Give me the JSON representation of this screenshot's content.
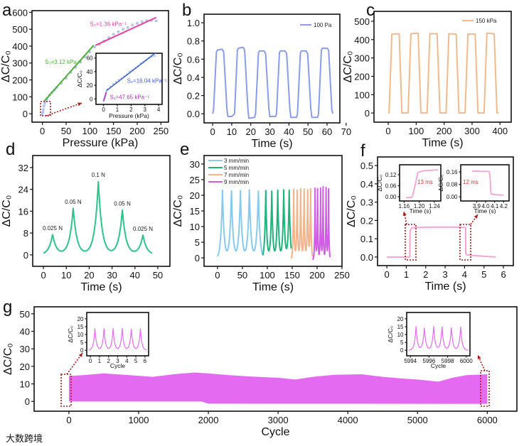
{
  "watermark": "大数跨境",
  "chart_data": [
    {
      "id": "a",
      "letter": "a",
      "type": "scatter",
      "xlabel": "Pressure (kPa)",
      "ylabel": "ΔC/C₀",
      "xlim": [
        -22,
        266
      ],
      "ylim": [
        -50,
        610
      ],
      "xticks": [
        "0",
        "50",
        "100",
        "150",
        "200",
        "250"
      ],
      "yticks": [
        "0",
        "100",
        "200",
        "300",
        "400",
        "500",
        "600"
      ],
      "points": {
        "color": "#b4c6ea",
        "x": [
          0,
          1,
          2,
          3,
          5,
          8,
          10,
          15,
          20,
          25,
          30,
          40,
          50,
          60,
          70,
          80,
          90,
          100,
          110,
          120,
          130,
          140,
          150,
          160,
          170,
          180,
          190,
          200,
          210,
          220,
          230,
          240
        ],
        "y": [
          0,
          10,
          25,
          45,
          62,
          78,
          90,
          110,
          125,
          140,
          155,
          180,
          210,
          245,
          275,
          305,
          335,
          365,
          395,
          410,
          430,
          450,
          470,
          485,
          500,
          510,
          525,
          535,
          545,
          550,
          552,
          550
        ]
      },
      "series": [
        {
          "name": "S3",
          "color": "#4caf3a",
          "x": [
            4,
            108
          ],
          "y": [
            75,
            405
          ]
        },
        {
          "name": "S4",
          "color": "#ea3f9c",
          "x": [
            112,
            240
          ],
          "y": [
            405,
            570
          ]
        }
      ],
      "annotations": [
        {
          "text": "S₃=3.12 kPa⁻¹",
          "x": 5,
          "y": 295,
          "color": "#4caf3a"
        },
        {
          "text": "S₄=1.36 kPa⁻¹",
          "x": 100,
          "y": 520,
          "color": "#ea3f9c"
        }
      ],
      "inset": {
        "ylabel": "ΔC/C₀",
        "xlabel": "Pressure (kPa)",
        "xlim": [
          -0.55,
          4.25
        ],
        "ylim": [
          -8,
          67
        ],
        "xticks": [
          "0",
          "1",
          "2",
          "3",
          "4"
        ],
        "yticks": [
          "0",
          "20",
          "40",
          "60"
        ],
        "points": {
          "color": "#b4c6ea",
          "x": [
            0,
            0.05,
            0.1,
            0.15,
            0.2,
            0.3,
            0.5,
            0.7,
            0.9,
            1.1,
            1.3,
            1.5,
            1.7,
            1.9,
            2.1,
            2.3,
            2.5,
            2.7,
            2.9,
            3.1,
            3.3,
            3.5,
            3.7
          ],
          "y": [
            -3,
            0,
            3,
            7,
            10,
            14,
            18,
            22,
            25,
            28,
            30,
            33,
            36,
            40,
            42,
            45,
            48,
            52,
            54,
            57,
            60,
            62,
            63
          ]
        },
        "series": [
          {
            "name": "S1",
            "color": "#b52fc2",
            "x": [
              0,
              0.2
            ],
            "y": [
              -3,
              10
            ]
          },
          {
            "name": "S2",
            "color": "#3a5fd0",
            "x": [
              0.2,
              3.8
            ],
            "y": [
              12,
              68
            ]
          }
        ],
        "annotations": [
          {
            "text": "S₂=16.04 kPa⁻¹",
            "x": 1.7,
            "y": 24,
            "color": "#3a5fd0"
          },
          {
            "text": "S₁=47.65 kPa⁻¹",
            "x": 0.45,
            "y": 0,
            "color": "#b52fc2"
          }
        ]
      }
    },
    {
      "id": "b",
      "letter": "b",
      "type": "line",
      "xlabel": "Time (s)",
      "ylabel": "ΔC/C₀",
      "xlim": [
        -4.5,
        66.7
      ],
      "ylim": [
        -0.1,
        1.094
      ],
      "xticks": [
        "0",
        "10",
        "20",
        "30",
        "40",
        "50",
        "60",
        "70"
      ],
      "yticks": [
        "0.0",
        "0.2",
        "0.4",
        "0.6",
        "0.8",
        "1.0"
      ],
      "legend": [
        {
          "name": "100 Pa",
          "color": "#8a9cec"
        }
      ],
      "series": [
        {
          "name": "100 Pa",
          "color": "#8a9cec",
          "x": [
            0,
            0.5,
            2,
            2.5,
            5,
            5.8,
            7.5,
            8,
            10,
            11.5,
            13,
            13.5,
            16,
            16.8,
            18.5,
            19,
            22,
            22.5,
            24,
            24.5,
            27,
            27.8,
            29.5,
            30,
            33,
            33.5,
            35,
            35.5,
            38,
            38.8,
            40.5,
            41,
            44,
            44.5,
            46,
            46.5,
            49,
            49.8,
            51.5,
            52,
            55,
            55.5,
            57,
            57.5,
            60,
            60.8,
            62.5,
            63
          ],
          "y": [
            0,
            0.05,
            0.68,
            0.7,
            0.71,
            0.68,
            0.05,
            -0.03,
            -0.03,
            0,
            0.7,
            0.72,
            0.73,
            0.7,
            0.05,
            -0.05,
            -0.04,
            0,
            0.67,
            0.69,
            0.69,
            0.66,
            0.05,
            -0.03,
            -0.03,
            0,
            0.67,
            0.69,
            0.69,
            0.66,
            0.05,
            -0.04,
            -0.04,
            0,
            0.67,
            0.69,
            0.69,
            0.66,
            0.05,
            -0.04,
            -0.04,
            0,
            0.7,
            0.72,
            0.72,
            0.7,
            0.05,
            0
          ]
        }
      ]
    },
    {
      "id": "c",
      "letter": "c",
      "type": "line",
      "xlabel": "Time (s)",
      "ylabel": "ΔC/C₀",
      "xlim": [
        -51,
        440
      ],
      "ylim": [
        -50,
        554
      ],
      "xticks": [
        "0",
        "100",
        "200",
        "300",
        "400"
      ],
      "yticks": [
        "0",
        "100",
        "200",
        "300",
        "400",
        "500"
      ],
      "legend": [
        {
          "name": "150 kPa",
          "color": "#f4b98a"
        }
      ],
      "series": [
        {
          "name": "150 kPa",
          "color": "#f4b98a",
          "x": [
            0,
            3,
            13,
            39,
            49,
            71,
            81,
            107,
            117,
            139,
            149,
            175,
            185,
            207,
            217,
            243,
            253,
            275,
            285,
            311,
            321,
            343,
            353,
            379,
            389,
            395
          ],
          "y": [
            0,
            0,
            430,
            432,
            0,
            0,
            432,
            435,
            0,
            0,
            432,
            432,
            0,
            0,
            432,
            430,
            0,
            0,
            430,
            430,
            0,
            0,
            435,
            432,
            0,
            0
          ]
        }
      ]
    },
    {
      "id": "d",
      "letter": "d",
      "type": "line",
      "xlabel": "Time (s)",
      "ylabel": "ΔC/C₀",
      "xlim": [
        -4.7,
        55.3
      ],
      "ylim": [
        -4.2,
        36.4
      ],
      "xticks": [
        "0",
        "10",
        "20",
        "30",
        "40",
        "50"
      ],
      "yticks": [
        "0",
        "8",
        "16",
        "24",
        "32"
      ],
      "x_range": [
        0,
        47.5
      ],
      "series": [
        {
          "name": "force",
          "color": "#2cc48a",
          "peaks": [
            {
              "x": 4,
              "y": 7.5,
              "label": "0.025 N"
            },
            {
              "x": 13,
              "y": 17.2,
              "label": "0.05 N"
            },
            {
              "x": 24,
              "y": 27,
              "label": "0.1 N"
            },
            {
              "x": 34.5,
              "y": 16.5,
              "label": "0.05 N"
            },
            {
              "x": 43.5,
              "y": 7.3,
              "label": "0.025 N"
            }
          ]
        }
      ]
    },
    {
      "id": "e",
      "letter": "e",
      "type": "line",
      "xlabel": "Time (s)",
      "ylabel": "ΔC/C₀",
      "xlim": [
        -27,
        250
      ],
      "ylim": [
        -2.7,
        32.7
      ],
      "xticks": [
        "0",
        "50",
        "100",
        "150",
        "200",
        "250"
      ],
      "yticks": [
        "0",
        "5",
        "10",
        "15",
        "20",
        "25",
        "30"
      ],
      "series": [
        {
          "name": "3 mm/min",
          "color": "#86caf0",
          "range": [
            0,
            91
          ],
          "peak_y": 21,
          "peaks_x": [
            10,
            28,
            46,
            64,
            82
          ]
        },
        {
          "name": "5 mm/min",
          "color": "#1db57b",
          "range": [
            91,
            148
          ],
          "peak_y": 21,
          "peaks_x": [
            97,
            109,
            121,
            133,
            144
          ]
        },
        {
          "name": "7 mm/min",
          "color": "#f2b48a",
          "range": [
            148,
            191
          ],
          "peak_y": 21.5,
          "peaks_x": [
            153,
            160,
            167,
            174,
            181,
            187
          ]
        },
        {
          "name": "9 mm/min",
          "color": "#d45ce8",
          "range": [
            191,
            226
          ],
          "peak_y": 22,
          "peaks_x": [
            196,
            201,
            207,
            212,
            218,
            223
          ]
        }
      ]
    },
    {
      "id": "f",
      "letter": "f",
      "type": "line",
      "xlabel": "Time (s)",
      "ylabel": "ΔC/C₀",
      "xlim": [
        -0.48,
        6.51
      ],
      "ylim": [
        -0.047,
        0.547
      ],
      "xticks": [
        "0",
        "1",
        "2",
        "3",
        "4",
        "5",
        "6"
      ],
      "yticks": [
        "0.0",
        "0.1",
        "0.2",
        "0.3",
        "0.4",
        "0.5"
      ],
      "series": [
        {
          "name": "response",
          "color": "#f6a4d2",
          "x": [
            0,
            1.16,
            1.18,
            1.193,
            1.21,
            1.3,
            2,
            3,
            3.5,
            4.0,
            4.05,
            4.062,
            4.1,
            4.5,
            5,
            5.6
          ],
          "y": [
            0,
            0,
            0.003,
            0.135,
            0.148,
            0.16,
            0.163,
            0.164,
            0.164,
            0.162,
            0.16,
            0.02,
            0.012,
            0.008,
            0.004,
            0
          ]
        }
      ],
      "insets": [
        {
          "xlabel": "Time (s)",
          "ylabel": "ΔC/C₀",
          "xlim": [
            1.148,
            1.257
          ],
          "ylim": [
            -0.023,
            0.174
          ],
          "xticks": [
            "1.16",
            "1.20",
            "1.24"
          ],
          "yticks": [
            "0.00",
            "0.06",
            "0.12"
          ],
          "note": "13 ms",
          "note_color": "#e03535",
          "x": [
            1.165,
            1.18,
            1.183,
            1.19,
            1.196,
            1.2,
            1.21,
            1.22,
            1.23,
            1.24,
            1.25
          ],
          "y": [
            -0.004,
            -0.004,
            0.01,
            0.07,
            0.13,
            0.135,
            0.14,
            0.143,
            0.144,
            0.145,
            0.146
          ]
        },
        {
          "xlabel": "Time (s)",
          "ylabel": "ΔC/C₀",
          "xlim": [
            3.723,
            4.26
          ],
          "ylim": [
            -0.027,
            0.206
          ],
          "xticks": [
            "3.9",
            "4.0",
            "4.1",
            "4.2"
          ],
          "yticks": [
            "0.00",
            "0.08",
            "0.16"
          ],
          "note": "12 ms",
          "note_color": "#e03535",
          "x": [
            3.85,
            3.9,
            3.95,
            4.0,
            4.04,
            4.05,
            4.055,
            4.06,
            4.062,
            4.1,
            4.15,
            4.2
          ],
          "y": [
            0.165,
            0.166,
            0.163,
            0.164,
            0.162,
            0.12,
            0.05,
            0.02,
            0.018,
            0.015,
            0.012,
            0.01
          ]
        }
      ]
    },
    {
      "id": "g",
      "letter": "g",
      "type": "area",
      "xlabel": "Cycle",
      "ylabel": "ΔC/C₀",
      "xlim": [
        -499,
        6425
      ],
      "ylim": [
        -5.6,
        54
      ],
      "xticks": [
        "0",
        "1000",
        "2000",
        "3000",
        "4000",
        "5000",
        "6000"
      ],
      "yticks": [
        "0",
        "10",
        "20",
        "30",
        "40",
        "50"
      ],
      "color": "#e56af2",
      "upper": {
        "x": [
          0,
          200,
          500,
          800,
          1100,
          1200,
          1500,
          1800,
          2000,
          2300,
          2600,
          3000,
          3250,
          3500,
          3800,
          4200,
          4500,
          4800,
          5000,
          5300,
          5500,
          5700,
          6000
        ],
        "y": [
          14.5,
          15,
          16,
          15.2,
          14.3,
          14,
          15.5,
          16.5,
          16,
          15,
          14.2,
          13.5,
          12.5,
          14,
          15.2,
          15.5,
          14,
          13,
          12.5,
          11.3,
          13.5,
          15,
          15.5
        ]
      },
      "lower": {
        "x": [
          0,
          1900,
          2000,
          6000
        ],
        "y": [
          0,
          0,
          -1.3,
          -1.4
        ]
      },
      "insets": [
        {
          "xlabel": "Cycle",
          "ylabel": "ΔC/C₀",
          "xlim": [
            -0.4,
            6.4
          ],
          "ylim": [
            -3.5,
            24
          ],
          "xticks": [
            "0",
            "1",
            "2",
            "3",
            "4",
            "5",
            "6"
          ],
          "yticks": [
            "0",
            "5",
            "10",
            "15",
            "20"
          ],
          "peaks_x": [
            0.5,
            1.5,
            2.5,
            3.5,
            4.5,
            5.5
          ],
          "peaks_y": [
            14,
            14,
            14,
            14,
            13.8,
            14
          ]
        },
        {
          "xlabel": "Cycle",
          "ylabel": "ΔC/C₀",
          "xlim": [
            5993.6,
            6000.4
          ],
          "ylim": [
            -3.5,
            24
          ],
          "xticks": [
            "5994",
            "5996",
            "5998",
            "6000"
          ],
          "yticks": [
            "0",
            "5",
            "10",
            "15",
            "20"
          ],
          "peaks_x": [
            5994.6,
            5995.5,
            5996.5,
            5997.4,
            5998.4,
            5999.4
          ],
          "peaks_y": [
            15,
            14.5,
            15.2,
            15.2,
            14.5,
            14.8
          ]
        }
      ]
    }
  ]
}
